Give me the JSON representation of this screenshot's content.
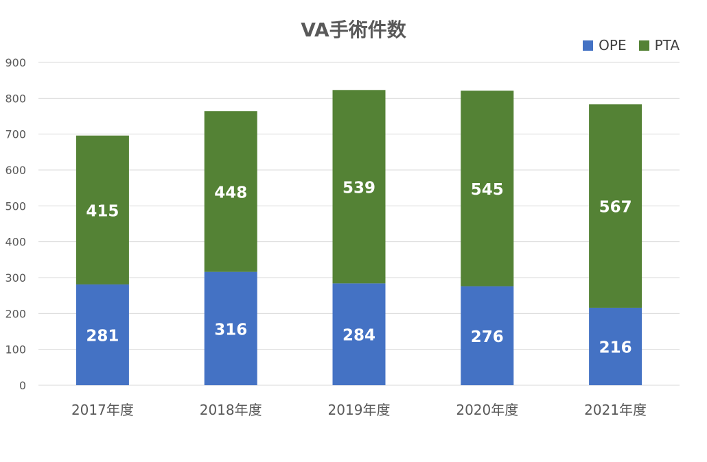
{
  "chart_data": {
    "type": "bar",
    "stacked": true,
    "title": "VA手術件数",
    "xlabel": "",
    "ylabel": "",
    "categories": [
      "2017年度",
      "2018年度",
      "2019年度",
      "2020年度",
      "2021年度"
    ],
    "series": [
      {
        "name": "OPE",
        "values": [
          281,
          316,
          284,
          276,
          216
        ],
        "color": "#4472C4"
      },
      {
        "name": "PTA",
        "values": [
          415,
          448,
          539,
          545,
          567
        ],
        "color": "#548235"
      }
    ],
    "ylim": [
      0,
      900
    ],
    "yticks": [
      0,
      100,
      200,
      300,
      400,
      500,
      600,
      700,
      800,
      900
    ],
    "grid": true,
    "legend_position": "top-right",
    "data_labels": true,
    "data_label_color": "#FFFFFF",
    "axis_text_color": "#595959",
    "gridline_color": "#D9D9D9"
  }
}
